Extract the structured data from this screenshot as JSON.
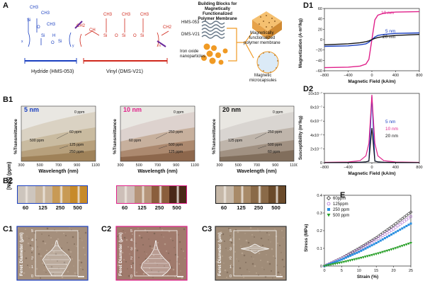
{
  "panels": {
    "A": "A",
    "B1": "B1",
    "B2": "B2",
    "C1": "C1",
    "C2": "C2",
    "C3": "C3",
    "D1": "D1",
    "D2": "D2",
    "E": "E"
  },
  "panel_a": {
    "hydride_label": "Hydride (HMS-053)",
    "vinyl_label": "Vinyl (DMS-V21)",
    "building_title": "Building Blocks for\nMagnetically Functionalized\nPolymer Membrane",
    "hms_label": "HMS-053",
    "dms_label": "DMS-V21",
    "iron_label": "Iron oxide\nnanoparticles",
    "membrane_label": "Magnetically\nfunctionalized\npolymer membrane",
    "microcapsule_label": "Magnetic\nmicrocapsules",
    "chem": {
      "ch3": "CH3",
      "ch2": "CH2",
      "ch": "CH",
      "h": "H",
      "si": "Si",
      "o": "O",
      "sub_x": "x",
      "sub_y": "y",
      "sub_n": "n",
      "sub_m": "m"
    }
  },
  "panel_b1": {
    "y_title": "%Transmittance",
    "x_title": "Wavelength (nm)",
    "x_ticks": [
      "300",
      "500",
      "700",
      "900",
      "1100"
    ],
    "charts": [
      {
        "size": "5 nm",
        "color": "#1a3fc0",
        "labels": [
          "0 ppm",
          "60 ppm",
          "125 ppm",
          "250 ppm",
          "500 ppm"
        ]
      },
      {
        "size": "10 nm",
        "color": "#e0208a",
        "labels": [
          "0 ppm",
          "250 ppm",
          "500 ppm",
          "125 ppm",
          "60 ppm"
        ]
      },
      {
        "size": "20 nm",
        "color": "#111111",
        "labels": [
          "0 ppm",
          "250 ppm",
          "500 ppm",
          "60 ppm",
          "125 ppm"
        ]
      }
    ]
  },
  "panel_b2": {
    "y_title": "[Nps] (ppm)",
    "concentrations": [
      "60",
      "125",
      "250",
      "500"
    ]
  },
  "panel_c": {
    "y_title": "Feret Diameter (μm)",
    "y_ticks": [
      "0",
      "1",
      "2",
      "3",
      "4",
      "5"
    ]
  },
  "panel_d1": {
    "y_title": "Magnetization (A·m²/kg)",
    "x_title": "Magnetic Field (kA/m)",
    "y_ticks": [
      "60",
      "40",
      "20",
      "0",
      "−20",
      "−40",
      "−60"
    ],
    "x_ticks": [
      "−800",
      "−400",
      "0",
      "400",
      "800"
    ],
    "legend": [
      {
        "name": "10 nm",
        "color": "#e0208a"
      },
      {
        "name": "5 nm",
        "color": "#1a3fc0"
      },
      {
        "name": "20 nm",
        "color": "#111111"
      }
    ]
  },
  "panel_d2": {
    "y_title": "Susceptibility (m³/kg)",
    "x_title": "Magnetic Field (kA/m)",
    "y_ticks": [
      "10x10⁻⁷",
      "8x10⁻⁷",
      "6x10⁻⁷",
      "4x10⁻⁷",
      "2x10⁻⁷",
      "0"
    ],
    "x_ticks": [
      "−800",
      "−400",
      "0",
      "400",
      "800"
    ],
    "legend": [
      {
        "name": "5 nm",
        "color": "#1a3fc0"
      },
      {
        "name": "10 nm",
        "color": "#e0208a"
      },
      {
        "name": "20 nm",
        "color": "#111111"
      }
    ]
  },
  "panel_e": {
    "y_title": "Stress (MPa)",
    "x_title": "Strain (%)",
    "y_ticks": [
      "0.4",
      "0.3",
      "0.2",
      "0.1",
      "0"
    ],
    "x_ticks": [
      "0",
      "5",
      "10",
      "15",
      "20",
      "25"
    ],
    "legend": [
      {
        "name": "60ppm",
        "color": "#333333"
      },
      {
        "name": "125ppm",
        "color": "#b070d0"
      },
      {
        "name": "250 ppm",
        "color": "#2a8fe0"
      },
      {
        "name": "500 ppm",
        "color": "#2aa02a"
      }
    ]
  },
  "chart_data": [
    {
      "type": "line",
      "title": "D1",
      "xlabel": "Magnetic Field (kA/m)",
      "ylabel": "Magnetization (A·m²/kg)",
      "xlim": [
        -800,
        800
      ],
      "ylim": [
        -60,
        60
      ],
      "series": [
        {
          "name": "10 nm",
          "x": [
            -800,
            -400,
            -200,
            -100,
            -50,
            0,
            50,
            100,
            200,
            400,
            800
          ],
          "values": [
            -54,
            -53,
            -51,
            -47,
            -38,
            0,
            38,
            47,
            51,
            53,
            54
          ]
        },
        {
          "name": "5 nm",
          "x": [
            -800,
            -400,
            -200,
            -100,
            -50,
            0,
            50,
            100,
            200,
            400,
            800
          ],
          "values": [
            -13,
            -12,
            -10,
            -8,
            -5,
            0,
            5,
            8,
            10,
            12,
            13
          ]
        },
        {
          "name": "20 nm",
          "x": [
            -800,
            -400,
            -200,
            -100,
            -50,
            0,
            50,
            100,
            200,
            400,
            800
          ],
          "values": [
            -10,
            -8,
            -6,
            -4,
            -2.5,
            0,
            2.5,
            4,
            6,
            8,
            10
          ]
        }
      ]
    },
    {
      "type": "line",
      "title": "D2",
      "xlabel": "Magnetic Field (kA/m)",
      "ylabel": "Susceptibility (m³/kg)",
      "xlim": [
        -800,
        800
      ],
      "ylim": [
        0,
        1e-06
      ],
      "series": [
        {
          "name": "5 nm",
          "x": [
            -800,
            -400,
            -200,
            -100,
            -50,
            0,
            50,
            100,
            200,
            400,
            800
          ],
          "values": [
            2e-09,
            3e-09,
            6e-09,
            1.2e-08,
            2.5e-08,
            9.6e-07,
            2.5e-08,
            1.2e-08,
            6e-09,
            3e-09,
            2e-09
          ]
        },
        {
          "name": "10 nm",
          "x": [
            -800,
            -400,
            -200,
            -100,
            -50,
            0,
            50,
            100,
            200,
            400,
            800
          ],
          "values": [
            5e-09,
            1e-08,
            3e-08,
            1e-07,
            2.8e-07,
            9.8e-07,
            2.8e-07,
            1e-07,
            3e-08,
            1e-08,
            5e-09
          ]
        },
        {
          "name": "20 nm",
          "x": [
            -800,
            -400,
            -200,
            -100,
            -50,
            0,
            50,
            100,
            200,
            400,
            800
          ],
          "values": [
            2e-09,
            4e-09,
            7e-09,
            1.3e-08,
            2.2e-08,
            5e-07,
            2.2e-08,
            1.3e-08,
            7e-09,
            4e-09,
            2e-09
          ]
        }
      ]
    },
    {
      "type": "scatter",
      "title": "E",
      "xlabel": "Strain (%)",
      "ylabel": "Stress (MPa)",
      "xlim": [
        0,
        25
      ],
      "ylim": [
        0,
        0.4
      ],
      "series": [
        {
          "name": "60ppm",
          "x": [
            0,
            5,
            10,
            15,
            20,
            25
          ],
          "values": [
            0,
            0.045,
            0.1,
            0.16,
            0.23,
            0.305
          ]
        },
        {
          "name": "125ppm",
          "x": [
            0,
            5,
            10,
            15,
            20,
            25
          ],
          "values": [
            0,
            0.042,
            0.093,
            0.15,
            0.21,
            0.28
          ]
        },
        {
          "name": "250 ppm",
          "x": [
            0,
            5,
            10,
            15,
            20,
            25
          ],
          "values": [
            0,
            0.037,
            0.08,
            0.13,
            0.185,
            0.24
          ]
        },
        {
          "name": "500 ppm",
          "x": [
            0,
            5,
            10,
            15,
            20,
            25
          ],
          "values": [
            0,
            0.02,
            0.043,
            0.068,
            0.097,
            0.13
          ]
        }
      ]
    }
  ]
}
